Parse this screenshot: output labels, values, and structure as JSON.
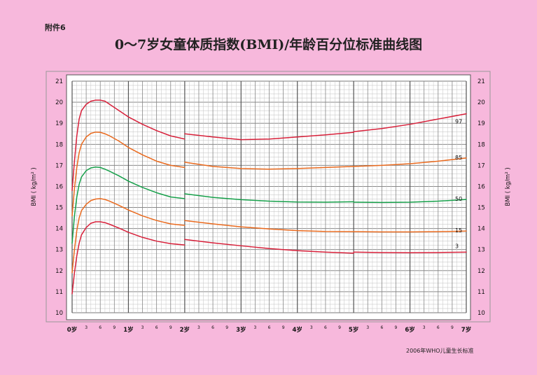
{
  "header": {
    "annex": "附件6",
    "title": "0～7岁女童体质指数(BMI)/年龄百分位标准曲线图"
  },
  "footer": {
    "source": "2006年WHO儿童生长标准"
  },
  "chart_data": {
    "type": "line",
    "title": "0～7岁女童体质指数(BMI)/年龄百分位标准曲线图",
    "ylabel": "BMI ( kg/m² )",
    "ylim": [
      10,
      21
    ],
    "y_ticks": [
      "10",
      "11",
      "12",
      "13",
      "14",
      "15",
      "16",
      "17",
      "18",
      "19",
      "20",
      "21"
    ],
    "xlim_months": [
      0,
      84
    ],
    "x_major_labels": [
      "0岁",
      "1岁",
      "2岁",
      "3岁",
      "4岁",
      "5岁",
      "6岁",
      "7岁"
    ],
    "x_minor_labels": [
      "3",
      "6",
      "9"
    ],
    "grid": true,
    "line_colors": {
      "97": "#d8203a",
      "85": "#ea6a1e",
      "50": "#16a04a",
      "15": "#ea6a1e",
      "3": "#d8203a"
    },
    "series": [
      {
        "name": "97",
        "color": "#d8203a",
        "segments": [
          [
            [
              0,
              15.8
            ],
            [
              0.5,
              17.2
            ],
            [
              1,
              18.4
            ],
            [
              1.5,
              19.2
            ],
            [
              2,
              19.6
            ],
            [
              3,
              19.9
            ],
            [
              4,
              20.05
            ],
            [
              5,
              20.1
            ],
            [
              6,
              20.1
            ],
            [
              7,
              20.05
            ],
            [
              8,
              19.9
            ],
            [
              10,
              19.6
            ],
            [
              12,
              19.3
            ],
            [
              15,
              18.95
            ],
            [
              18,
              18.65
            ],
            [
              21,
              18.4
            ],
            [
              24,
              18.25
            ]
          ],
          [
            [
              24,
              18.5
            ],
            [
              30,
              18.35
            ],
            [
              36,
              18.22
            ],
            [
              42,
              18.25
            ],
            [
              48,
              18.35
            ],
            [
              54,
              18.45
            ],
            [
              60,
              18.57
            ]
          ],
          [
            [
              60,
              18.6
            ],
            [
              66,
              18.75
            ],
            [
              72,
              18.95
            ],
            [
              78,
              19.2
            ],
            [
              84,
              19.45
            ]
          ]
        ]
      },
      {
        "name": "85",
        "color": "#ea6a1e",
        "segments": [
          [
            [
              0,
              14.6
            ],
            [
              0.5,
              15.9
            ],
            [
              1,
              16.9
            ],
            [
              1.5,
              17.6
            ],
            [
              2,
              18.0
            ],
            [
              3,
              18.35
            ],
            [
              4,
              18.52
            ],
            [
              5,
              18.58
            ],
            [
              6,
              18.57
            ],
            [
              7,
              18.5
            ],
            [
              8,
              18.4
            ],
            [
              10,
              18.15
            ],
            [
              12,
              17.85
            ],
            [
              15,
              17.5
            ],
            [
              18,
              17.2
            ],
            [
              21,
              17.0
            ],
            [
              24,
              16.9
            ]
          ],
          [
            [
              24,
              17.15
            ],
            [
              30,
              16.95
            ],
            [
              36,
              16.85
            ],
            [
              42,
              16.82
            ],
            [
              48,
              16.85
            ],
            [
              54,
              16.9
            ],
            [
              60,
              16.95
            ]
          ],
          [
            [
              60,
              16.95
            ],
            [
              66,
              17.0
            ],
            [
              72,
              17.08
            ],
            [
              78,
              17.2
            ],
            [
              84,
              17.35
            ]
          ]
        ]
      },
      {
        "name": "50",
        "color": "#16a04a",
        "segments": [
          [
            [
              0,
              13.3
            ],
            [
              0.5,
              14.6
            ],
            [
              1,
              15.5
            ],
            [
              1.5,
              16.1
            ],
            [
              2,
              16.45
            ],
            [
              3,
              16.75
            ],
            [
              4,
              16.88
            ],
            [
              5,
              16.92
            ],
            [
              6,
              16.9
            ],
            [
              7,
              16.82
            ],
            [
              8,
              16.72
            ],
            [
              10,
              16.5
            ],
            [
              12,
              16.25
            ],
            [
              15,
              15.95
            ],
            [
              18,
              15.7
            ],
            [
              21,
              15.5
            ],
            [
              24,
              15.42
            ]
          ],
          [
            [
              24,
              15.65
            ],
            [
              30,
              15.48
            ],
            [
              36,
              15.37
            ],
            [
              42,
              15.3
            ],
            [
              48,
              15.26
            ],
            [
              54,
              15.25
            ],
            [
              60,
              15.27
            ]
          ],
          [
            [
              60,
              15.25
            ],
            [
              66,
              15.24
            ],
            [
              72,
              15.25
            ],
            [
              78,
              15.3
            ],
            [
              84,
              15.38
            ]
          ]
        ]
      },
      {
        "name": "15",
        "color": "#ea6a1e",
        "segments": [
          [
            [
              0,
              11.9
            ],
            [
              0.5,
              13.0
            ],
            [
              1,
              13.9
            ],
            [
              1.5,
              14.5
            ],
            [
              2,
              14.85
            ],
            [
              3,
              15.15
            ],
            [
              4,
              15.33
            ],
            [
              5,
              15.4
            ],
            [
              6,
              15.42
            ],
            [
              7,
              15.38
            ],
            [
              8,
              15.3
            ],
            [
              10,
              15.1
            ],
            [
              12,
              14.88
            ],
            [
              15,
              14.6
            ],
            [
              18,
              14.38
            ],
            [
              21,
              14.22
            ],
            [
              24,
              14.15
            ]
          ],
          [
            [
              24,
              14.38
            ],
            [
              30,
              14.22
            ],
            [
              36,
              14.08
            ],
            [
              42,
              13.98
            ],
            [
              48,
              13.9
            ],
            [
              54,
              13.86
            ],
            [
              60,
              13.85
            ]
          ],
          [
            [
              60,
              13.85
            ],
            [
              66,
              13.84
            ],
            [
              72,
              13.84
            ],
            [
              78,
              13.85
            ],
            [
              84,
              13.88
            ]
          ]
        ]
      },
      {
        "name": "3",
        "color": "#d8203a",
        "segments": [
          [
            [
              0,
              10.9
            ],
            [
              0.5,
              11.9
            ],
            [
              1,
              12.7
            ],
            [
              1.5,
              13.3
            ],
            [
              2,
              13.7
            ],
            [
              3,
              14.05
            ],
            [
              4,
              14.25
            ],
            [
              5,
              14.32
            ],
            [
              6,
              14.32
            ],
            [
              7,
              14.28
            ],
            [
              8,
              14.2
            ],
            [
              10,
              14.02
            ],
            [
              12,
              13.82
            ],
            [
              15,
              13.58
            ],
            [
              18,
              13.4
            ],
            [
              21,
              13.28
            ],
            [
              24,
              13.22
            ]
          ],
          [
            [
              24,
              13.48
            ],
            [
              30,
              13.32
            ],
            [
              36,
              13.18
            ],
            [
              42,
              13.05
            ],
            [
              48,
              12.95
            ],
            [
              54,
              12.88
            ],
            [
              60,
              12.83
            ]
          ],
          [
            [
              60,
              12.88
            ],
            [
              66,
              12.86
            ],
            [
              72,
              12.85
            ],
            [
              78,
              12.86
            ],
            [
              84,
              12.88
            ]
          ]
        ]
      }
    ]
  }
}
